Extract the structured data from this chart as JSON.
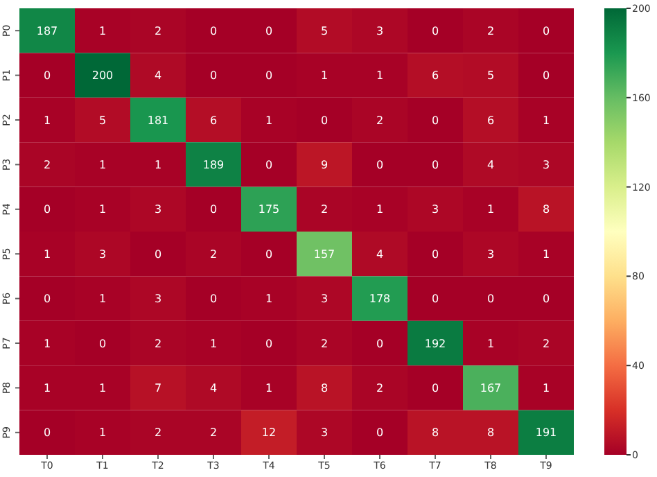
{
  "chart_data": {
    "type": "heatmap",
    "categories": [
      "T0",
      "T1",
      "T2",
      "T3",
      "T4",
      "T5",
      "T6",
      "T7",
      "T8",
      "T9"
    ],
    "y_categories": [
      "P0",
      "P1",
      "P2",
      "P3",
      "P4",
      "P5",
      "P6",
      "P7",
      "P8",
      "P9"
    ],
    "cells": [
      [
        187,
        1,
        2,
        0,
        0,
        5,
        3,
        0,
        2,
        0
      ],
      [
        0,
        200,
        4,
        0,
        0,
        1,
        1,
        6,
        5,
        0
      ],
      [
        1,
        5,
        181,
        6,
        1,
        0,
        2,
        0,
        6,
        1
      ],
      [
        2,
        1,
        1,
        189,
        0,
        9,
        0,
        0,
        4,
        3
      ],
      [
        0,
        1,
        3,
        0,
        175,
        2,
        1,
        3,
        1,
        8
      ],
      [
        1,
        3,
        0,
        2,
        0,
        157,
        4,
        0,
        3,
        1
      ],
      [
        0,
        1,
        3,
        0,
        1,
        3,
        178,
        0,
        0,
        0
      ],
      [
        1,
        0,
        2,
        1,
        0,
        2,
        0,
        192,
        1,
        2
      ],
      [
        1,
        1,
        7,
        4,
        1,
        8,
        2,
        0,
        167,
        1
      ],
      [
        0,
        1,
        2,
        2,
        12,
        3,
        0,
        8,
        8,
        191
      ]
    ],
    "data_labels": true,
    "clim": [
      0,
      200
    ],
    "cticks": [
      0,
      40,
      80,
      120,
      160,
      200
    ]
  }
}
